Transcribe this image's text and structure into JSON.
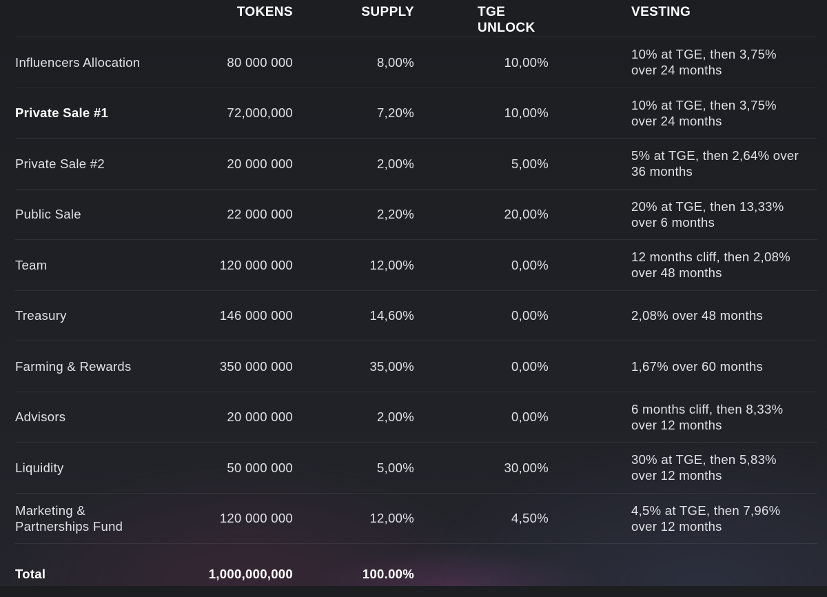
{
  "headers": {
    "name": "",
    "tokens": "TOKENS",
    "supply": "SUPPLY",
    "tge": "TGE UNLOCK",
    "vesting": "VESTING"
  },
  "rows": [
    {
      "name": "Influencers Allocation",
      "tokens": "80 000 000",
      "supply": "8,00%",
      "tge": "10,00%",
      "vesting": "10% at TGE, then 3,75% over 24 months"
    },
    {
      "name": "Private Sale #1",
      "tokens": "72,000,000",
      "supply": "7,20%",
      "tge": "10,00%",
      "vesting": "10% at TGE, then 3,75% over 24 months"
    },
    {
      "name": "Private Sale #2",
      "tokens": "20 000 000",
      "supply": "2,00%",
      "tge": "5,00%",
      "vesting": "5% at TGE, then 2,64% over 36 months"
    },
    {
      "name": "Public Sale",
      "tokens": "22 000 000",
      "supply": "2,20%",
      "tge": "20,00%",
      "vesting": "20% at TGE, then 13,33% over 6 months"
    },
    {
      "name": "Team",
      "tokens": "120 000 000",
      "supply": "12,00%",
      "tge": "0,00%",
      "vesting": "12 months cliff, then 2,08% over 48 months"
    },
    {
      "name": "Treasury",
      "tokens": "146 000 000",
      "supply": "14,60%",
      "tge": "0,00%",
      "vesting": "2,08% over 48 months"
    },
    {
      "name": "Farming & Rewards",
      "tokens": "350 000 000",
      "supply": "35,00%",
      "tge": "0,00%",
      "vesting": "1,67% over 60 months"
    },
    {
      "name": "Advisors",
      "tokens": "20 000 000",
      "supply": "2,00%",
      "tge": "0,00%",
      "vesting": "6 months cliff, then 8,33% over 12 months"
    },
    {
      "name": "Liquidity",
      "tokens": "50 000 000",
      "supply": "5,00%",
      "tge": "30,00%",
      "vesting": "30% at TGE, then 5,83% over 12 months"
    },
    {
      "name": "Marketing & Partnerships Fund",
      "tokens": "120 000 000",
      "supply": "12,00%",
      "tge": "4,50%",
      "vesting": "4,5% at TGE, then 7,96% over 12 months"
    }
  ],
  "total": {
    "name": "Total",
    "tokens": "1,000,000,000",
    "supply": "100.00%"
  },
  "colors": {
    "background": "#1f2126",
    "text": "#dfe1e6",
    "header": "#ffffff",
    "divider": "rgba(255,255,255,0.07)"
  }
}
